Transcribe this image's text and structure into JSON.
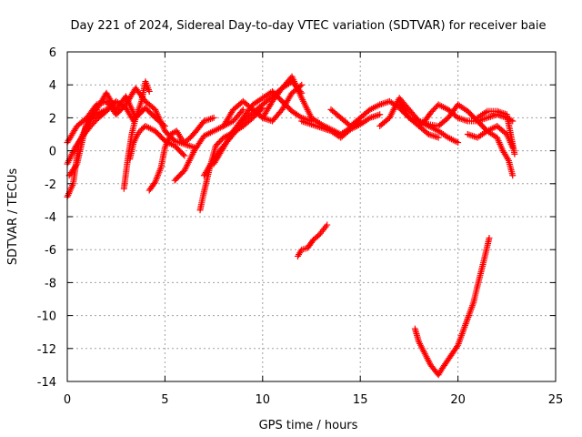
{
  "chart_data": {
    "type": "scatter",
    "title": "Day 221 of 2024, Sidereal Day-to-day VTEC variation (SDTVAR) for receiver baie",
    "xlabel": "GPS time / hours",
    "ylabel": "SDTVAR / TECUs",
    "xlim": [
      0,
      25
    ],
    "ylim": [
      -14,
      6
    ],
    "xticks": [
      0,
      5,
      10,
      15,
      20,
      25
    ],
    "yticks": [
      -14,
      -12,
      -10,
      -8,
      -6,
      -4,
      -2,
      0,
      2,
      4,
      6
    ],
    "grid": true,
    "marker": "+",
    "series": [
      {
        "name": "SDTVAR",
        "color": "#ff0000",
        "tracks": [
          {
            "x": [
              0.0,
              0.3,
              0.6,
              1.0,
              1.5,
              2.0,
              2.5,
              3.0,
              3.5,
              4.0,
              4.5,
              5.0
            ],
            "y": [
              -2.8,
              -2.0,
              0.5,
              1.5,
              2.5,
              3.5,
              2.5,
              3.3,
              2.0,
              2.6,
              2.0,
              1.5
            ]
          },
          {
            "x": [
              0.0,
              0.5,
              1.0,
              1.5,
              2.0,
              2.5,
              3.0,
              3.5,
              4.0,
              4.5,
              5.0,
              5.5,
              6.0,
              6.5
            ],
            "y": [
              0.5,
              1.5,
              2.0,
              2.8,
              3.0,
              2.2,
              2.8,
              3.8,
              3.0,
              2.5,
              1.2,
              0.6,
              0.4,
              0.2
            ]
          },
          {
            "x": [
              0.0,
              0.4,
              0.8,
              1.2,
              1.6,
              2.0,
              2.5,
              3.0,
              3.4
            ],
            "y": [
              -0.8,
              0.2,
              0.9,
              1.5,
              2.0,
              2.4,
              3.0,
              2.6,
              1.8
            ]
          },
          {
            "x": [
              0.1,
              0.5,
              1.0,
              1.5,
              2.0
            ],
            "y": [
              -1.5,
              -0.8,
              1.8,
              2.2,
              2.5
            ]
          },
          {
            "x": [
              2.9,
              3.1,
              3.3,
              3.5,
              3.8,
              4.0,
              4.2
            ],
            "y": [
              -2.3,
              -0.5,
              1.0,
              2.0,
              3.0,
              4.2,
              3.6
            ]
          },
          {
            "x": [
              3.2,
              3.4,
              3.6,
              3.8,
              4.0,
              4.5,
              5.0,
              5.5,
              6.0
            ],
            "y": [
              -0.5,
              0.5,
              1.0,
              1.3,
              1.5,
              1.2,
              0.6,
              0.3,
              -0.3
            ]
          },
          {
            "x": [
              4.2,
              4.5,
              4.8,
              5.0,
              5.3,
              5.6,
              5.8,
              6.0,
              6.3,
              6.6,
              7.0,
              7.5
            ],
            "y": [
              -2.4,
              -1.9,
              -1.0,
              0.2,
              1.0,
              1.2,
              0.8,
              0.5,
              0.8,
              1.2,
              1.8,
              2.0
            ]
          },
          {
            "x": [
              5.5,
              6.0,
              6.5,
              7.0,
              7.5,
              8.0,
              8.5,
              9.0
            ],
            "y": [
              -1.8,
              -1.2,
              0.0,
              0.9,
              1.2,
              1.5,
              1.8,
              2.5
            ]
          },
          {
            "x": [
              6.8,
              7.0,
              7.3,
              7.6,
              8.0,
              8.5,
              9.0,
              9.5,
              10.0
            ],
            "y": [
              -3.6,
              -2.5,
              -1.0,
              0.3,
              0.8,
              1.1,
              1.5,
              2.0,
              2.6
            ]
          },
          {
            "x": [
              7.0,
              7.5,
              8.0,
              8.5,
              9.0,
              9.5,
              10.0,
              10.5,
              11.0,
              11.5,
              12.0
            ],
            "y": [
              -1.5,
              -0.5,
              0.3,
              1.0,
              1.8,
              2.3,
              2.8,
              3.3,
              3.8,
              4.2,
              3.5
            ]
          },
          {
            "x": [
              7.5,
              8.0,
              8.5,
              9.0,
              9.5,
              10.0,
              10.5,
              11.0,
              11.5,
              12.0,
              12.5
            ],
            "y": [
              -0.8,
              0.2,
              1.2,
              2.0,
              2.8,
              3.2,
              3.6,
              3.0,
              2.4,
              2.0,
              1.8
            ]
          },
          {
            "x": [
              8.0,
              8.5,
              9.0,
              9.5,
              10.0,
              10.5,
              11.0,
              11.5,
              12.0
            ],
            "y": [
              1.5,
              2.5,
              3.0,
              2.5,
              2.0,
              1.8,
              2.5,
              3.5,
              4.0
            ]
          },
          {
            "x": [
              10.0,
              10.5,
              11.0,
              11.5,
              12.0,
              12.5,
              13.0,
              13.5,
              14.0,
              14.5,
              15.0
            ],
            "y": [
              2.0,
              3.0,
              3.8,
              4.5,
              3.2,
              2.0,
              1.6,
              1.3,
              1.0,
              1.4,
              1.8
            ]
          },
          {
            "x": [
              12.0,
              12.5,
              13.0,
              13.5,
              14.0,
              14.5,
              15.0,
              15.5,
              16.0
            ],
            "y": [
              1.8,
              1.6,
              1.4,
              1.2,
              0.8,
              1.3,
              1.6,
              2.0,
              2.2
            ]
          },
          {
            "x": [
              13.5,
              14.0,
              14.5,
              15.0,
              15.5,
              16.0,
              16.5,
              17.0,
              17.5,
              18.0,
              18.5,
              19.0,
              19.5,
              20.0
            ],
            "y": [
              2.5,
              2.0,
              1.5,
              2.0,
              2.5,
              2.8,
              3.0,
              2.6,
              2.0,
              1.8,
              1.6,
              1.5,
              2.0,
              2.8
            ]
          },
          {
            "x": [
              16.0,
              16.5,
              17.0,
              17.5,
              18.0,
              18.5,
              19.0,
              19.5,
              20.0
            ],
            "y": [
              1.5,
              2.0,
              3.2,
              2.5,
              1.8,
              1.5,
              1.2,
              0.8,
              0.5
            ]
          },
          {
            "x": [
              17.0,
              17.5,
              18.0,
              18.5,
              19.0
            ],
            "y": [
              3.0,
              2.0,
              1.5,
              1.0,
              0.8
            ]
          },
          {
            "x": [
              18.0,
              18.3,
              18.6,
              19.0,
              19.5,
              20.0,
              20.5,
              21.0,
              21.5,
              22.0,
              22.5,
              22.8
            ],
            "y": [
              1.5,
              1.8,
              2.3,
              2.8,
              2.5,
              2.0,
              1.8,
              1.8,
              2.0,
              2.2,
              2.0,
              1.8
            ]
          },
          {
            "x": [
              20.0,
              20.5,
              21.0,
              21.5,
              22.0,
              22.3,
              22.6,
              22.8
            ],
            "y": [
              2.8,
              2.4,
              1.8,
              1.2,
              0.8,
              0.0,
              -0.6,
              -1.5
            ]
          },
          {
            "x": [
              20.5,
              21.0,
              21.5,
              22.0,
              22.5,
              22.8
            ],
            "y": [
              1.0,
              0.8,
              1.2,
              1.5,
              1.0,
              0.2
            ]
          },
          {
            "x": [
              21.0,
              21.5,
              22.0,
              22.5,
              22.9
            ],
            "y": [
              2.0,
              2.4,
              2.4,
              2.2,
              -0.2
            ]
          },
          {
            "x": [
              11.8,
              12.0,
              12.3,
              12.6,
              12.9,
              13.1,
              13.3
            ],
            "y": [
              -6.4,
              -6.0,
              -5.9,
              -5.4,
              -5.1,
              -4.8,
              -4.5
            ]
          },
          {
            "x": [
              17.8,
              18.0,
              18.3,
              18.6,
              19.0,
              19.2,
              19.6,
              20.0,
              20.4,
              20.8,
              21.0,
              21.3,
              21.6
            ],
            "y": [
              -10.8,
              -11.6,
              -12.3,
              -13.0,
              -13.6,
              -13.2,
              -12.5,
              -11.8,
              -10.5,
              -9.2,
              -8.2,
              -6.8,
              -5.3
            ]
          }
        ]
      }
    ]
  }
}
